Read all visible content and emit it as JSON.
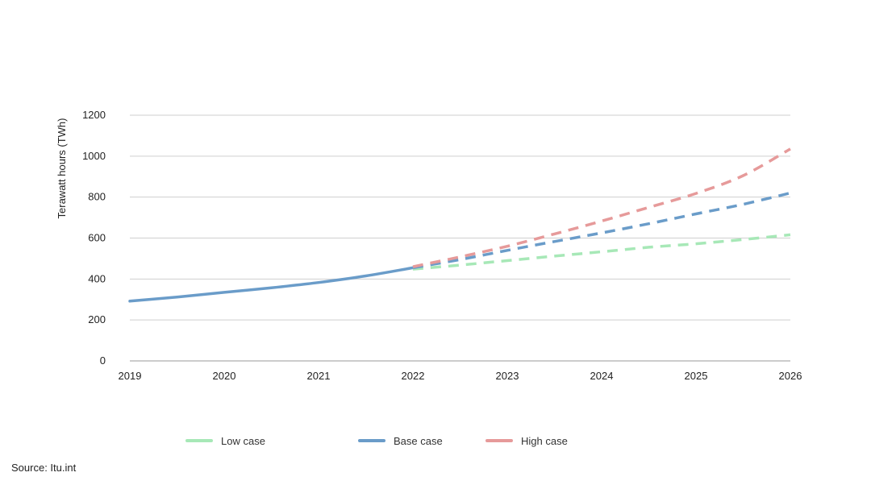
{
  "chart_data": {
    "type": "line",
    "title": "",
    "xlabel": "",
    "ylabel": "Terawatt hours (TWh)",
    "xlim": [
      2019,
      2026
    ],
    "ylim": [
      0,
      1200
    ],
    "x_ticks": [
      "2019",
      "2020",
      "2021",
      "2022",
      "2023",
      "2024",
      "2025",
      "2026"
    ],
    "y_ticks": [
      "0",
      "200",
      "400",
      "600",
      "800",
      "1000",
      "1200"
    ],
    "grid": "horizontal",
    "legend_position": "bottom",
    "historical": {
      "x": [
        2019,
        2019.5,
        2020,
        2020.5,
        2021,
        2021.5,
        2022
      ],
      "values": [
        292,
        312,
        335,
        357,
        383,
        415,
        455
      ],
      "color": "#6a9cc9",
      "style": "solid"
    },
    "series": [
      {
        "name": "Low case",
        "color": "#a7e8b7",
        "style": "dashed",
        "x": [
          2022,
          2022.5,
          2023,
          2023.5,
          2024,
          2024.5,
          2025,
          2025.5,
          2026
        ],
        "values": [
          448,
          468,
          490,
          512,
          533,
          555,
          572,
          593,
          616
        ]
      },
      {
        "name": "Base case",
        "color": "#6a9cc9",
        "style": "dashed",
        "x": [
          2022,
          2022.5,
          2023,
          2023.5,
          2024,
          2024.5,
          2025,
          2025.5,
          2026
        ],
        "values": [
          455,
          495,
          540,
          583,
          625,
          670,
          718,
          765,
          820
        ]
      },
      {
        "name": "High case",
        "color": "#e69a9a",
        "style": "dashed",
        "x": [
          2022,
          2022.5,
          2023,
          2023.5,
          2024,
          2024.5,
          2025,
          2025.5,
          2026
        ],
        "values": [
          460,
          508,
          560,
          620,
          683,
          750,
          818,
          905,
          1035
        ]
      }
    ]
  },
  "legend": {
    "items": [
      {
        "label": "Low case",
        "color": "#a7e8b7"
      },
      {
        "label": "Base case",
        "color": "#6a9cc9"
      },
      {
        "label": "High case",
        "color": "#e69a9a"
      }
    ]
  },
  "source": "Source: Itu.int"
}
